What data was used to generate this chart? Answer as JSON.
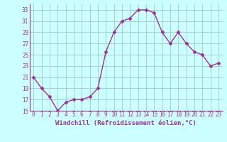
{
  "x": [
    0,
    1,
    2,
    3,
    4,
    5,
    6,
    7,
    8,
    9,
    10,
    11,
    12,
    13,
    14,
    15,
    16,
    17,
    18,
    19,
    20,
    21,
    22,
    23
  ],
  "y": [
    21,
    19,
    17.5,
    15,
    16.5,
    17,
    17,
    17.5,
    19,
    25.5,
    29,
    31,
    31.5,
    33,
    33,
    32.5,
    29,
    27,
    29,
    27,
    25.5,
    25,
    23,
    23.5
  ],
  "line_color": "#993399",
  "marker": "D",
  "marker_size": 2.5,
  "bg_color": "#ccffff",
  "grid_color": "#aacccc",
  "xlabel": "Windchill (Refroidissement éolien,°C)",
  "ylabel": "",
  "xlim": [
    -0.5,
    23.5
  ],
  "ylim": [
    15,
    34
  ],
  "yticks": [
    15,
    17,
    19,
    21,
    23,
    25,
    27,
    29,
    31,
    33
  ],
  "xticks": [
    0,
    1,
    2,
    3,
    4,
    5,
    6,
    7,
    8,
    9,
    10,
    11,
    12,
    13,
    14,
    15,
    16,
    17,
    18,
    19,
    20,
    21,
    22,
    23
  ],
  "tick_color": "#993399",
  "label_fontsize": 6.5,
  "tick_labelsize": 5.5,
  "line_width": 1.0
}
